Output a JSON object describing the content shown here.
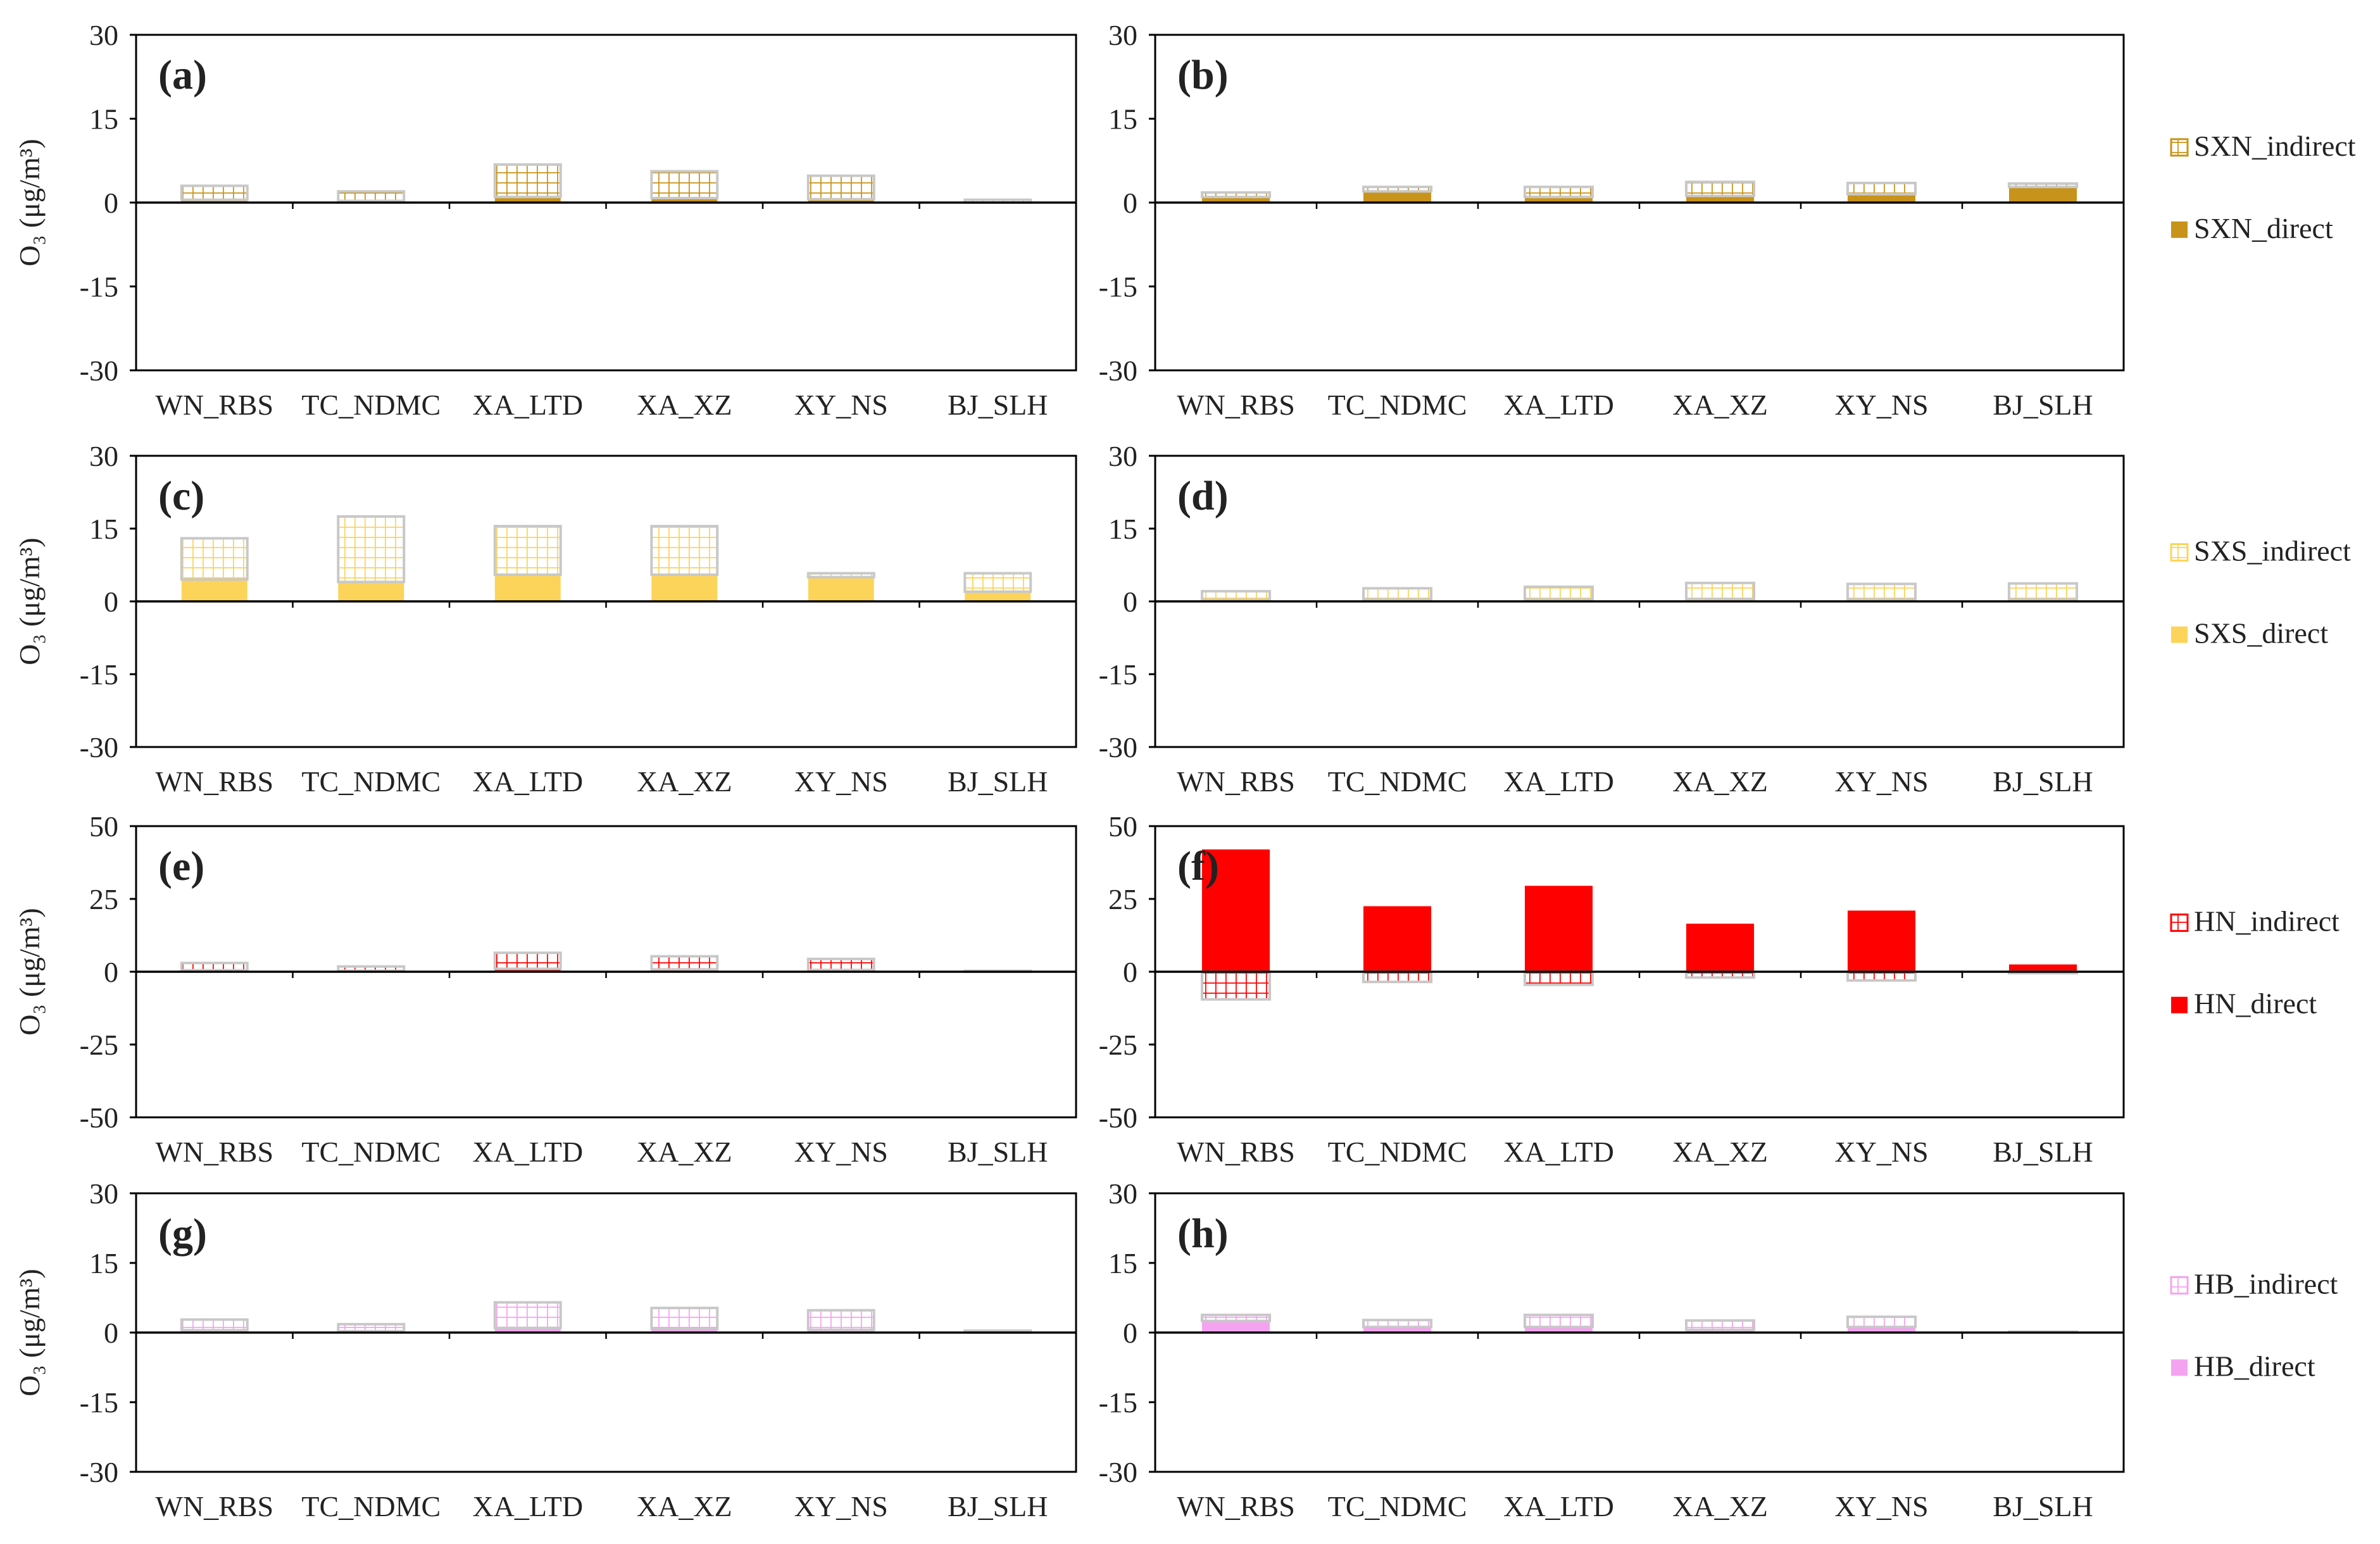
{
  "chart_data": {
    "type": "bar",
    "categories": [
      "WN_RBS",
      "TC_NDMC",
      "XA_LTD",
      "XA_XZ",
      "XY_NS",
      "BJ_SLH"
    ],
    "ylabel_text": "O₃ (μg/m³)",
    "rows": [
      {
        "color": "#C8931A",
        "legend": [
          {
            "label": "SXN_indirect",
            "kind": "indirect"
          },
          {
            "label": "SXN_direct",
            "kind": "direct"
          }
        ]
      },
      {
        "color": "#FCD45A",
        "legend": [
          {
            "label": "SXS_indirect",
            "kind": "indirect"
          },
          {
            "label": "SXS_direct",
            "kind": "direct"
          }
        ]
      },
      {
        "color": "#FF0000",
        "legend": [
          {
            "label": "HN_indirect",
            "kind": "indirect"
          },
          {
            "label": "HN_direct",
            "kind": "direct"
          }
        ]
      },
      {
        "color": "#F5A3F0",
        "legend": [
          {
            "label": "HB_indirect",
            "kind": "indirect"
          },
          {
            "label": "HB_direct",
            "kind": "direct"
          }
        ]
      }
    ],
    "panels": [
      {
        "label": "(a)",
        "ylim": [
          -30,
          30
        ],
        "yticks": [
          "30",
          "15",
          "0",
          "-15",
          "-30"
        ],
        "series": [
          {
            "name": "SXN_direct",
            "values": [
              0.5,
              0.3,
              1.0,
              0.8,
              0.6,
              0.0
            ]
          },
          {
            "name": "SXN_indirect",
            "values": [
              2.5,
              1.7,
              5.8,
              4.8,
              4.2,
              0.5
            ]
          }
        ]
      },
      {
        "label": "(b)",
        "ylim": [
          -30,
          30
        ],
        "yticks": [
          "30",
          "15",
          "0",
          "-15",
          "-30"
        ],
        "series": [
          {
            "name": "SXN_direct",
            "values": [
              1.0,
              2.0,
              1.0,
              1.2,
              1.5,
              2.8
            ]
          },
          {
            "name": "SXN_indirect",
            "values": [
              0.8,
              0.8,
              1.8,
              2.5,
              2.0,
              0.6
            ]
          }
        ]
      },
      {
        "label": "(c)",
        "ylim": [
          -30,
          30
        ],
        "yticks": [
          "30",
          "15",
          "0",
          "-15",
          "-30"
        ],
        "series": [
          {
            "name": "SXS_direct",
            "values": [
              4.5,
              4.0,
              5.5,
              5.5,
              5.0,
              2.0
            ]
          },
          {
            "name": "SXS_indirect",
            "values": [
              8.5,
              13.5,
              10.0,
              10.0,
              0.8,
              3.8
            ]
          }
        ]
      },
      {
        "label": "(d)",
        "ylim": [
          -30,
          30
        ],
        "yticks": [
          "30",
          "15",
          "0",
          "-15",
          "-30"
        ],
        "series": [
          {
            "name": "SXS_direct",
            "values": [
              0.3,
              0.4,
              0.4,
              0.5,
              0.4,
              0.4
            ]
          },
          {
            "name": "SXS_indirect",
            "values": [
              1.8,
              2.3,
              2.6,
              3.3,
              3.2,
              3.3
            ]
          }
        ]
      },
      {
        "label": "(e)",
        "ylim": [
          -50,
          50
        ],
        "yticks": [
          "50",
          "25",
          "0",
          "-25",
          "-50"
        ],
        "series": [
          {
            "name": "HN_direct",
            "values": [
              0.5,
              0.3,
              1.0,
              0.8,
              0.6,
              0.0
            ]
          },
          {
            "name": "HN_indirect",
            "values": [
              2.5,
              1.5,
              5.5,
              4.5,
              3.8,
              0.3
            ]
          }
        ]
      },
      {
        "label": "(f)",
        "ylim": [
          -50,
          50
        ],
        "yticks": [
          "50",
          "25",
          "0",
          "-25",
          "-50"
        ],
        "series": [
          {
            "name": "HN_direct",
            "values": [
              42,
              22.5,
              29.5,
              16.5,
              21,
              2.5
            ]
          },
          {
            "name": "HN_indirect",
            "values": [
              -9.5,
              -3.5,
              -4.5,
              -2.0,
              -3.0,
              -0.5
            ]
          }
        ]
      },
      {
        "label": "(g)",
        "ylim": [
          -30,
          30
        ],
        "yticks": [
          "30",
          "15",
          "0",
          "-15",
          "-30"
        ],
        "series": [
          {
            "name": "HB_direct",
            "values": [
              0.5,
              0.3,
              1.0,
              0.8,
              0.6,
              0.0
            ]
          },
          {
            "name": "HB_indirect",
            "values": [
              2.3,
              1.5,
              5.5,
              4.5,
              4.2,
              0.4
            ]
          }
        ]
      },
      {
        "label": "(h)",
        "ylim": [
          -30,
          30
        ],
        "yticks": [
          "30",
          "15",
          "0",
          "-15",
          "-30"
        ],
        "series": [
          {
            "name": "HB_direct",
            "values": [
              2.5,
              1.2,
              1.2,
              0.6,
              1.2,
              0.1
            ]
          },
          {
            "name": "HB_indirect",
            "values": [
              1.3,
              1.5,
              2.6,
              2.0,
              2.2,
              0.1
            ]
          }
        ]
      }
    ]
  }
}
